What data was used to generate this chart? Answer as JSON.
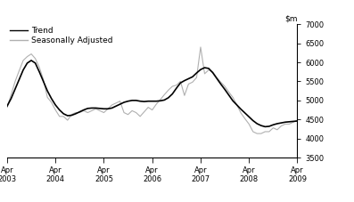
{
  "ylim": [
    3500,
    7000
  ],
  "yticks": [
    3500,
    4000,
    4500,
    5000,
    5500,
    6000,
    6500,
    7000
  ],
  "trend_color": "#000000",
  "seasonal_color": "#b0b0b0",
  "legend_trend": "Trend",
  "legend_seasonal": "Seasonally Adjusted",
  "trend_linewidth": 1.2,
  "seasonal_linewidth": 0.8,
  "background_color": "#ffffff",
  "xtick_labels": [
    "Apr\n2003",
    "Apr\n2004",
    "Apr\n2005",
    "Apr\n2006",
    "Apr\n2007",
    "Apr\n2008",
    "Apr\n2009"
  ],
  "xtick_positions": [
    0,
    12,
    24,
    36,
    48,
    60,
    72
  ],
  "trend_x": [
    0,
    1,
    2,
    3,
    4,
    5,
    6,
    7,
    8,
    9,
    10,
    11,
    12,
    13,
    14,
    15,
    16,
    17,
    18,
    19,
    20,
    21,
    22,
    23,
    24,
    25,
    26,
    27,
    28,
    29,
    30,
    31,
    32,
    33,
    34,
    35,
    36,
    37,
    38,
    39,
    40,
    41,
    42,
    43,
    44,
    45,
    46,
    47,
    48,
    49,
    50,
    51,
    52,
    53,
    54,
    55,
    56,
    57,
    58,
    59,
    60,
    61,
    62,
    63,
    64,
    65,
    66,
    67,
    68,
    69,
    70,
    71,
    72
  ],
  "trend_y": [
    4850,
    5050,
    5300,
    5550,
    5800,
    5980,
    6050,
    5980,
    5750,
    5500,
    5250,
    5050,
    4880,
    4750,
    4650,
    4600,
    4610,
    4650,
    4700,
    4750,
    4790,
    4800,
    4800,
    4790,
    4780,
    4780,
    4800,
    4850,
    4900,
    4950,
    4980,
    5000,
    5000,
    4980,
    4970,
    4980,
    4980,
    4980,
    4990,
    5010,
    5070,
    5170,
    5320,
    5460,
    5520,
    5570,
    5620,
    5720,
    5810,
    5860,
    5840,
    5730,
    5580,
    5430,
    5290,
    5140,
    4990,
    4880,
    4770,
    4670,
    4570,
    4470,
    4390,
    4340,
    4310,
    4320,
    4360,
    4390,
    4410,
    4430,
    4440,
    4450,
    4460
  ],
  "seasonal_x": [
    0,
    1,
    2,
    3,
    4,
    5,
    6,
    7,
    8,
    9,
    10,
    11,
    12,
    13,
    14,
    15,
    16,
    17,
    18,
    19,
    20,
    21,
    22,
    23,
    24,
    25,
    26,
    27,
    28,
    29,
    30,
    31,
    32,
    33,
    34,
    35,
    36,
    37,
    38,
    39,
    40,
    41,
    42,
    43,
    44,
    45,
    46,
    47,
    48,
    49,
    50,
    51,
    52,
    53,
    54,
    55,
    56,
    57,
    58,
    59,
    60,
    61,
    62,
    63,
    64,
    65,
    66,
    67,
    68,
    69,
    70,
    71,
    72
  ],
  "seasonal_y": [
    4820,
    5150,
    5500,
    5780,
    6050,
    6150,
    6220,
    6100,
    5870,
    5550,
    5080,
    4950,
    4750,
    4580,
    4580,
    4480,
    4630,
    4680,
    4680,
    4730,
    4680,
    4730,
    4780,
    4730,
    4680,
    4780,
    4880,
    4930,
    4980,
    4680,
    4630,
    4730,
    4680,
    4580,
    4700,
    4820,
    4750,
    4900,
    5020,
    5150,
    5270,
    5370,
    5400,
    5500,
    5130,
    5430,
    5480,
    5600,
    6400,
    5700,
    5800,
    5750,
    5600,
    5480,
    5370,
    5220,
    5080,
    4880,
    4670,
    4520,
    4380,
    4180,
    4130,
    4130,
    4180,
    4180,
    4280,
    4230,
    4330,
    4380,
    4380,
    4430,
    4480
  ]
}
